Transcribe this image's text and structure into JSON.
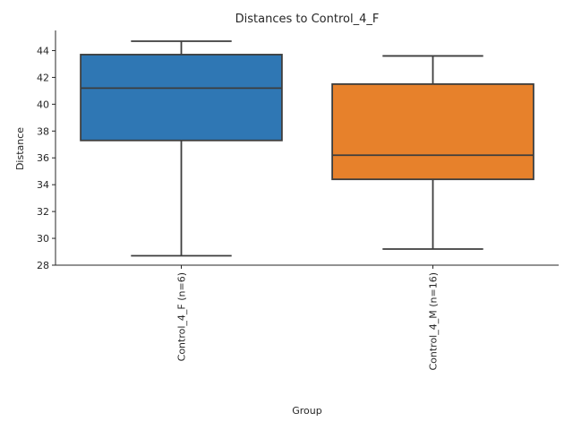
{
  "chart_data": {
    "type": "box",
    "title": "Distances to Control_4_F",
    "xlabel": "Group",
    "ylabel": "Distance",
    "ylim": [
      28,
      45.5
    ],
    "yticks": [
      28,
      30,
      32,
      34,
      36,
      38,
      40,
      42,
      44
    ],
    "grid": false,
    "groups": [
      {
        "label": "Control_4_F (n=6)",
        "color": "#2f77b4",
        "whisker_low": 28.7,
        "q1": 37.3,
        "median": 41.2,
        "q3": 43.7,
        "whisker_high": 44.7
      },
      {
        "label": "Control_4_M (n=16)",
        "color": "#e7812b",
        "whisker_low": 29.2,
        "q1": 34.4,
        "median": 36.2,
        "q3": 41.5,
        "whisker_high": 43.6
      }
    ]
  }
}
